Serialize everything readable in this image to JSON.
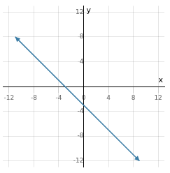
{
  "chart_data": {
    "type": "line",
    "x": [
      -11,
      9
    ],
    "values": [
      8,
      -12
    ],
    "color": "#3a7ca5",
    "xlabel": "x",
    "ylabel": "y",
    "xlim": [
      -13,
      13
    ],
    "ylim": [
      -13,
      13
    ],
    "xticks": [
      -12,
      -8,
      -4,
      0,
      4,
      8,
      12
    ],
    "yticks": [
      -12,
      -8,
      -4,
      4,
      8,
      12
    ],
    "grid": true
  }
}
